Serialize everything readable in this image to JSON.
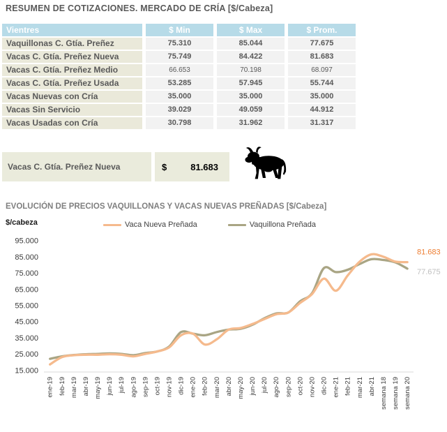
{
  "report": {
    "title": "RESUMEN DE COTIZACIONES. MERCADO DE CRÍA [$/Cabeza]"
  },
  "table": {
    "columns": [
      "Vientres",
      "$ Min",
      "$ Max",
      "$ Prom."
    ],
    "rows": [
      {
        "vientres": "Vaquillonas C. Gtía. Preñez",
        "min": "75.310",
        "max": "85.044",
        "prom": "77.675",
        "muted": false
      },
      {
        "vientres": "Vacas C. Gtía. Preñez Nueva",
        "min": "75.749",
        "max": "84.422",
        "prom": "81.683",
        "muted": false
      },
      {
        "vientres": "Vacas C. Gtía. Preñez Medio",
        "min": "66.653",
        "max": "70.198",
        "prom": "68.097",
        "muted": true
      },
      {
        "vientres": "Vacas C. Gtía. Preñez Usada",
        "min": "53.285",
        "max": "57.945",
        "prom": "55.744",
        "muted": false
      },
      {
        "vientres": "Vacas Nuevas con Cría",
        "min": "35.000",
        "max": "35.000",
        "prom": "35.000",
        "muted": false
      },
      {
        "vientres": "Vacas Sin Servicio",
        "min": "39.029",
        "max": "49.059",
        "prom": "44.912",
        "muted": false
      },
      {
        "vientres": "Vacas Usadas con Cría",
        "min": "30.798",
        "max": "31.962",
        "prom": "31.317",
        "muted": false
      }
    ]
  },
  "highlight": {
    "label": "Vacas C. Gtía. Preñez Nueva",
    "currency_symbol": "$",
    "value": "81.683",
    "icon": "cow-icon"
  },
  "chart_data": {
    "type": "line",
    "title": "EVOLUCIÓN DE PRECIOS VAQUILLONAS Y VACAS NUEVAS PREÑADAS [$/Cabeza]",
    "ylabel": "$/cabeza",
    "xlabel": "",
    "ylim": [
      15000,
      95000
    ],
    "y_ticks": [
      "15.000",
      "25.000",
      "35.000",
      "45.000",
      "55.000",
      "65.000",
      "75.000",
      "85.000",
      "95.000"
    ],
    "grid": false,
    "legend_position": "top",
    "categories": [
      "ene-19",
      "feb-19",
      "mar-19",
      "abr-19",
      "may-19",
      "jun-19",
      "jul-19",
      "ago-19",
      "sep-19",
      "oct-19",
      "nov-19",
      "dic-19",
      "ene-20",
      "feb-20",
      "mar-20",
      "abr-20",
      "may-20",
      "jun-20",
      "jul-20",
      "ago-20",
      "sep-20",
      "oct-20",
      "nov-20",
      "dic-20",
      "ene-21",
      "feb-21",
      "mar-21",
      "abr-21",
      "semana 18",
      "semana 19",
      "semana 20"
    ],
    "series": [
      {
        "name": "Vaca Nueva Preñada",
        "color": "#f5ba8d",
        "end_label": "81.683",
        "end_label_color": "#ed7d31",
        "values": [
          18500,
          23000,
          24200,
          24500,
          24500,
          24800,
          24500,
          23500,
          25000,
          26500,
          29000,
          36500,
          37500,
          30800,
          34000,
          40000,
          41000,
          43500,
          46500,
          49500,
          50500,
          56500,
          62000,
          71500,
          64000,
          73500,
          82000,
          86500,
          85000,
          82000,
          81683
        ]
      },
      {
        "name": "Vaquillona Preñada",
        "color": "#a9a584",
        "end_label": "77.675",
        "end_label_color": "#bfbfbf",
        "values": [
          22000,
          23500,
          24300,
          24800,
          25000,
          25300,
          25000,
          24200,
          25500,
          26500,
          29500,
          38500,
          37500,
          36500,
          38500,
          40000,
          40500,
          43000,
          47000,
          50000,
          50500,
          57500,
          62500,
          78000,
          75500,
          77000,
          80500,
          83500,
          83000,
          81500,
          77675
        ]
      }
    ]
  },
  "colors": {
    "header_bg": "#b7dbe8",
    "header_text": "#ffffff",
    "row_label_bg": "#eae9da",
    "row_value_bg": "#f2f2f2",
    "highlight_bg": "#eaebdc",
    "title_text": "#595959",
    "chart_title_text": "#7f7f7f",
    "axis_line": "#d9d9d9",
    "tick_text": "#3a3a3a"
  }
}
